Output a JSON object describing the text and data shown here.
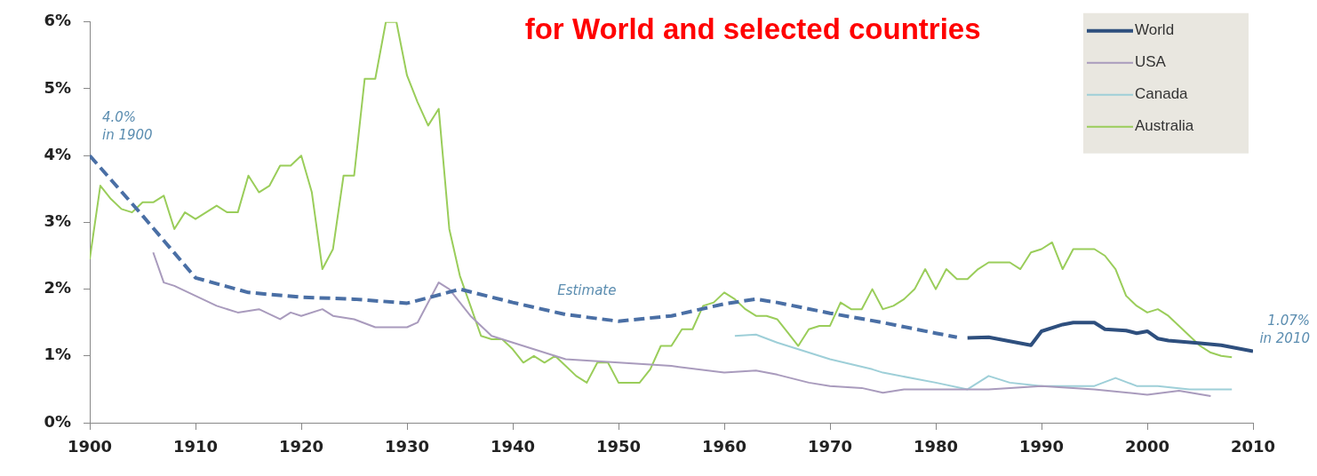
{
  "chart_data": {
    "type": "line",
    "title": "for World and selected countries",
    "xlim": [
      1900,
      2010
    ],
    "xticks": [
      1900,
      1910,
      1920,
      1930,
      1940,
      1950,
      1960,
      1970,
      1980,
      1990,
      2000,
      2010
    ],
    "ylim": [
      0,
      6
    ],
    "yticks": [
      {
        "value": 0,
        "label": "0%"
      },
      {
        "value": 1,
        "label": "1%"
      },
      {
        "value": 2,
        "label": "2%"
      },
      {
        "value": 3,
        "label": "3%"
      },
      {
        "value": 4,
        "label": "4%"
      },
      {
        "value": 5,
        "label": "5%"
      },
      {
        "value": 6,
        "label": "6%"
      }
    ],
    "grid": false,
    "legend": "top right",
    "marker": "none",
    "annotations": [
      {
        "text": "4.0%\nin 1900",
        "x": 1900,
        "y": 4.0
      },
      {
        "text": "Estimate",
        "x": 1947,
        "y": 1.6
      },
      {
        "text": "1.07%\nin 2010",
        "x": 2010,
        "y": 1.07
      }
    ],
    "series": [
      {
        "name": "World",
        "color": "#2e4f7e",
        "line_style": "solid",
        "x": [
          1983,
          1985,
          1987,
          1989,
          1990,
          1992,
          1993,
          1995,
          1996,
          1998,
          1999,
          2000,
          2001,
          2002,
          2005,
          2007,
          2010
        ],
        "values": [
          1.27,
          1.28,
          1.22,
          1.16,
          1.37,
          1.47,
          1.5,
          1.5,
          1.4,
          1.38,
          1.34,
          1.37,
          1.26,
          1.23,
          1.19,
          1.16,
          1.07
        ]
      },
      {
        "color": "#4a6fa5",
        "line_style": "dashed",
        "x": [
          1900,
          1905,
          1910,
          1915,
          1920,
          1925,
          1930,
          1932,
          1935,
          1940,
          1945,
          1950,
          1955,
          1960,
          1963,
          1965,
          1970,
          1975,
          1980,
          1982
        ],
        "values": [
          4.0,
          3.1,
          2.17,
          1.95,
          1.88,
          1.85,
          1.79,
          1.87,
          2.0,
          1.8,
          1.62,
          1.52,
          1.6,
          1.78,
          1.85,
          1.8,
          1.64,
          1.5,
          1.34,
          1.28
        ]
      },
      {
        "name": "USA",
        "color": "#a99bbd",
        "line_style": "solid",
        "x": [
          1906,
          1907,
          1908,
          1910,
          1912,
          1914,
          1916,
          1918,
          1919,
          1920,
          1922,
          1923,
          1925,
          1927,
          1930,
          1931,
          1933,
          1934,
          1936,
          1938,
          1940,
          1942,
          1945,
          1950,
          1955,
          1960,
          1963,
          1965,
          1968,
          1970,
          1973,
          1975,
          1977,
          1980,
          1983,
          1985,
          1990,
          1995,
          2000,
          2003,
          2006
        ],
        "values": [
          2.55,
          2.1,
          2.05,
          1.9,
          1.75,
          1.65,
          1.7,
          1.55,
          1.65,
          1.6,
          1.7,
          1.6,
          1.55,
          1.43,
          1.43,
          1.5,
          2.1,
          2.0,
          1.6,
          1.3,
          1.2,
          1.1,
          0.95,
          0.9,
          0.85,
          0.75,
          0.78,
          0.72,
          0.6,
          0.55,
          0.52,
          0.45,
          0.5,
          0.5,
          0.5,
          0.5,
          0.55,
          0.5,
          0.42,
          0.48,
          0.4
        ]
      },
      {
        "name": "Canada",
        "color": "#9ecfd8",
        "line_style": "solid",
        "x": [
          1961,
          1963,
          1965,
          1967,
          1970,
          1974,
          1975,
          1980,
          1983,
          1985,
          1987,
          1990,
          1995,
          1997,
          1999,
          2001,
          2004,
          2008
        ],
        "values": [
          1.3,
          1.32,
          1.2,
          1.1,
          0.95,
          0.8,
          0.75,
          0.6,
          0.5,
          0.7,
          0.6,
          0.55,
          0.55,
          0.67,
          0.55,
          0.55,
          0.5,
          0.5
        ]
      },
      {
        "name": "Australia",
        "color": "#9acd5a",
        "line_style": "solid",
        "x": [
          1900,
          1901,
          1902,
          1903,
          1904,
          1905,
          1906,
          1907,
          1908,
          1909,
          1910,
          1912,
          1913,
          1914,
          1915,
          1916,
          1917,
          1918,
          1919,
          1920,
          1921,
          1922,
          1923,
          1924,
          1925,
          1926,
          1927,
          1928,
          1929,
          1930,
          1931,
          1932,
          1933,
          1934,
          1935,
          1936,
          1937,
          1938,
          1939,
          1940,
          1941,
          1942,
          1943,
          1944,
          1945,
          1946,
          1947,
          1948,
          1949,
          1950,
          1951,
          1952,
          1953,
          1954,
          1955,
          1956,
          1957,
          1958,
          1959,
          1960,
          1961,
          1962,
          1963,
          1964,
          1965,
          1966,
          1967,
          1968,
          1969,
          1970,
          1971,
          1972,
          1973,
          1974,
          1975,
          1976,
          1977,
          1978,
          1979,
          1980,
          1981,
          1982,
          1983,
          1984,
          1985,
          1986,
          1987,
          1988,
          1989,
          1990,
          1991,
          1992,
          1993,
          1994,
          1995,
          1996,
          1997,
          1998,
          1999,
          2000,
          2001,
          2002,
          2003,
          2004,
          2005,
          2006,
          2007,
          2008
        ],
        "values": [
          2.45,
          3.55,
          3.35,
          3.2,
          3.15,
          3.3,
          3.3,
          3.4,
          2.9,
          3.15,
          3.05,
          3.25,
          3.15,
          3.15,
          3.7,
          3.45,
          3.55,
          3.85,
          3.85,
          4.0,
          3.45,
          2.3,
          2.6,
          3.7,
          3.7,
          5.15,
          5.15,
          6.0,
          6.0,
          5.2,
          4.8,
          4.45,
          4.7,
          2.9,
          2.2,
          1.75,
          1.3,
          1.25,
          1.25,
          1.1,
          0.9,
          1.0,
          0.9,
          1.0,
          0.85,
          0.7,
          0.6,
          0.9,
          0.9,
          0.6,
          0.6,
          0.6,
          0.8,
          1.15,
          1.15,
          1.4,
          1.4,
          1.75,
          1.8,
          1.95,
          1.85,
          1.7,
          1.6,
          1.6,
          1.55,
          1.35,
          1.15,
          1.4,
          1.45,
          1.45,
          1.8,
          1.7,
          1.7,
          2.0,
          1.7,
          1.75,
          1.85,
          2.0,
          2.3,
          2.0,
          2.3,
          2.15,
          2.15,
          2.3,
          2.4,
          2.4,
          2.4,
          2.3,
          2.55,
          2.6,
          2.7,
          2.3,
          2.6,
          2.6,
          2.6,
          2.5,
          2.3,
          1.9,
          1.75,
          1.65,
          1.7,
          1.6,
          1.45,
          1.3,
          1.15,
          1.05,
          1.0,
          0.98
        ]
      }
    ]
  }
}
